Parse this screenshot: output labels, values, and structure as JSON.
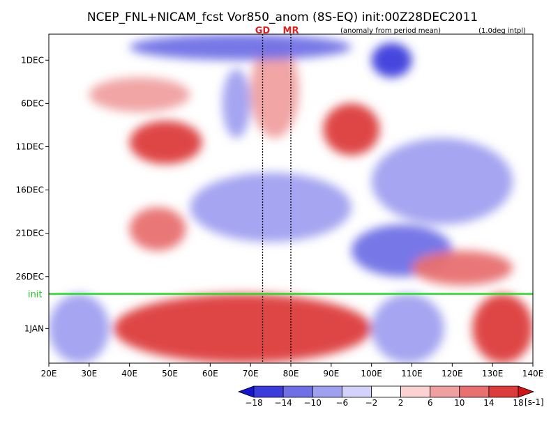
{
  "chart_data": {
    "type": "heatmap",
    "title": "NCEP_FNL+NICAM_fcst Vor850_anom (8S-EQ) init:00Z28DEC2011",
    "annotations": {
      "left": "(anomaly from period mean)",
      "right": "(1.0deg intpl)",
      "init_label": "init",
      "marker_go": "GD",
      "marker_mr": "MR"
    },
    "x_axis": {
      "labels": [
        "20E",
        "30E",
        "40E",
        "50E",
        "60E",
        "70E",
        "80E",
        "90E",
        "100E",
        "110E",
        "120E",
        "130E",
        "140E"
      ],
      "values": [
        20,
        30,
        40,
        50,
        60,
        70,
        80,
        90,
        100,
        110,
        120,
        130,
        140
      ],
      "range": [
        20,
        140
      ]
    },
    "y_axis": {
      "labels": [
        "1DEC",
        "6DEC",
        "11DEC",
        "16DEC",
        "21DEC",
        "26DEC",
        "1JAN"
      ],
      "dates": [
        "2011-12-01",
        "2011-12-06",
        "2011-12-11",
        "2011-12-16",
        "2011-12-21",
        "2011-12-26",
        "2012-01-01"
      ],
      "range": [
        "2011-11-28",
        "2012-01-05"
      ],
      "direction": "time increases downward"
    },
    "init_date": "2011-12-28",
    "marker_longitudes": [
      73,
      80
    ],
    "colorbar": {
      "levels": [
        -18,
        -14,
        -10,
        -6,
        -2,
        2,
        6,
        10,
        14,
        18
      ],
      "labels": [
        "−18",
        "−14",
        "−10",
        "−6",
        "−2",
        "2",
        "6",
        "10",
        "14",
        "18"
      ],
      "unit": "[s-1]",
      "colors": [
        "#1414d2",
        "#3c3cdc",
        "#7070e6",
        "#a0a0f0",
        "#d2d2fa",
        "#ffffff",
        "#fad2d2",
        "#f0a0a0",
        "#e87070",
        "#dc3c3c",
        "#d21414"
      ]
    },
    "features": [
      {
        "lon": [
          40,
          58
        ],
        "date": [
          "2011-12-08",
          "2011-12-13"
        ],
        "value": 14
      },
      {
        "lon": [
          40,
          54
        ],
        "date": [
          "2011-12-18",
          "2011-12-23"
        ],
        "value": 12
      },
      {
        "lon": [
          88,
          102
        ],
        "date": [
          "2011-12-06",
          "2011-12-12"
        ],
        "value": 16
      },
      {
        "lon": [
          30,
          55
        ],
        "date": [
          "2011-12-03",
          "2011-12-07"
        ],
        "value": 6
      },
      {
        "lon": [
          70,
          82
        ],
        "date": [
          "2011-11-29",
          "2011-12-10"
        ],
        "value": 8
      },
      {
        "lon": [
          63,
          70
        ],
        "date": [
          "2011-12-02",
          "2011-12-10"
        ],
        "value": -8
      },
      {
        "lon": [
          55,
          95
        ],
        "date": [
          "2011-12-14",
          "2011-12-22"
        ],
        "value": -8
      },
      {
        "lon": [
          100,
          135
        ],
        "date": [
          "2011-12-10",
          "2011-12-20"
        ],
        "value": -10
      },
      {
        "lon": [
          95,
          120
        ],
        "date": [
          "2011-12-20",
          "2011-12-26"
        ],
        "value": -14
      },
      {
        "lon": [
          40,
          95
        ],
        "date": [
          "2011-11-28",
          "2011-12-01"
        ],
        "value": -12
      },
      {
        "lon": [
          100,
          110
        ],
        "date": [
          "2011-11-29",
          "2011-12-03"
        ],
        "value": -16
      },
      {
        "lon": [
          110,
          135
        ],
        "date": [
          "2011-12-23",
          "2011-12-27"
        ],
        "value": 12
      },
      {
        "lon": [
          36,
          100
        ],
        "date": [
          "2011-12-28",
          "2012-01-05"
        ],
        "value": 14
      },
      {
        "lon": [
          20,
          35
        ],
        "date": [
          "2011-12-28",
          "2012-01-05"
        ],
        "value": -8
      },
      {
        "lon": [
          100,
          118
        ],
        "date": [
          "2011-12-28",
          "2012-01-05"
        ],
        "value": -8
      },
      {
        "lon": [
          125,
          140
        ],
        "date": [
          "2011-12-28",
          "2012-01-05"
        ],
        "value": 14
      }
    ]
  }
}
